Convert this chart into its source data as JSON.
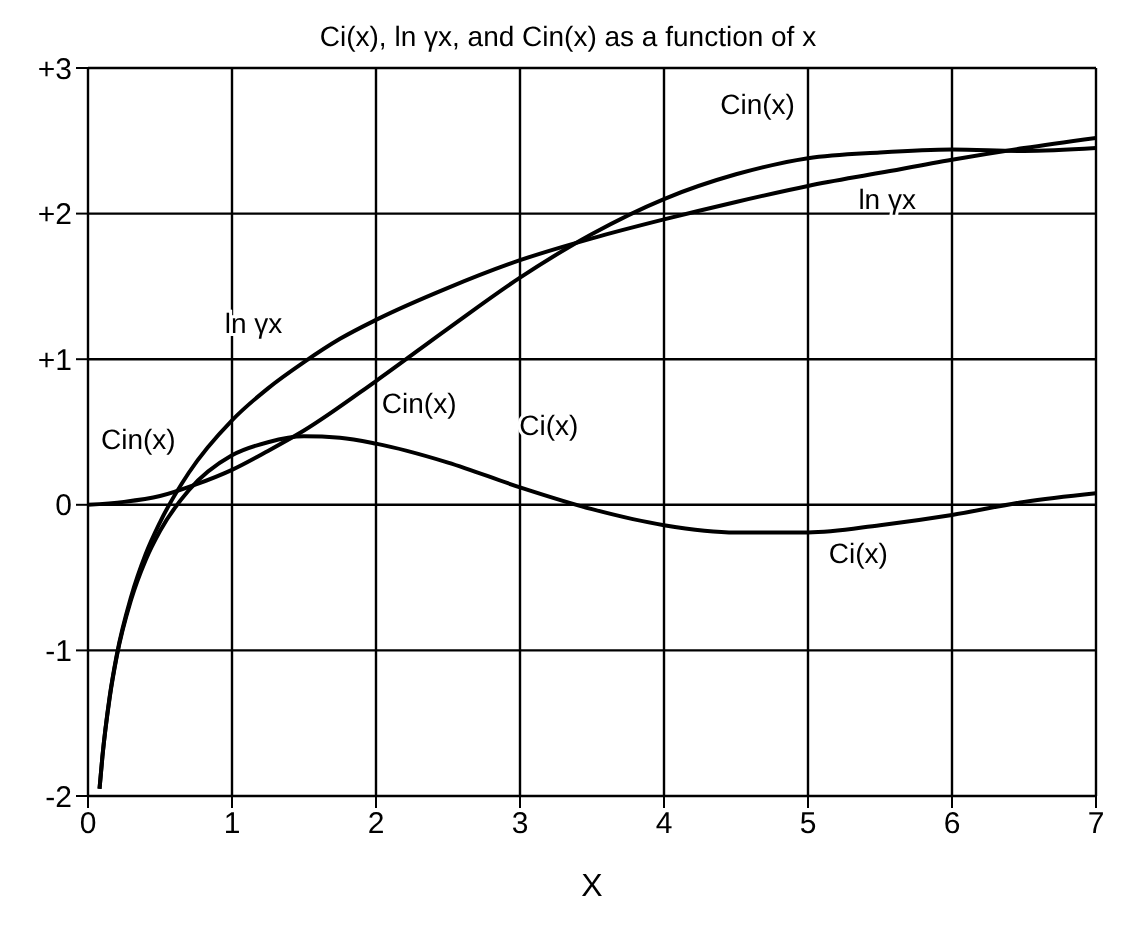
{
  "chart_data": {
    "type": "line",
    "title": "Ci(x), ln γx, and Cin(x) as a function of x",
    "xlabel": "X",
    "x": [
      0.08,
      0.1,
      0.15,
      0.2,
      0.3,
      0.4,
      0.5,
      0.7,
      1,
      1.25,
      1.5,
      1.75,
      2,
      2.5,
      3,
      3.5,
      4,
      4.5,
      5,
      5.5,
      6,
      6.5,
      7
    ],
    "series": [
      {
        "name": "Ci(x)",
        "color": "#000000",
        "values": [
          -1.95,
          -1.73,
          -1.33,
          -1.04,
          -0.65,
          -0.38,
          -0.18,
          0.1,
          0.34,
          0.43,
          0.47,
          0.46,
          0.42,
          0.29,
          0.12,
          -0.03,
          -0.14,
          -0.19,
          -0.19,
          -0.14,
          -0.07,
          0.02,
          0.08
        ]
      },
      {
        "name": "ln γx",
        "color": "#000000",
        "values": [
          -1.95,
          -1.73,
          -1.32,
          -1.03,
          -0.63,
          -0.34,
          -0.12,
          0.22,
          0.58,
          0.8,
          0.98,
          1.14,
          1.27,
          1.49,
          1.68,
          1.83,
          1.96,
          2.08,
          2.19,
          2.28,
          2.37,
          2.45,
          2.52
        ]
      },
      {
        "name": "Cin(x)",
        "color": "#000000",
        "x": [
          0,
          0.25,
          0.5,
          0.75,
          1,
          1.25,
          1.5,
          2,
          2.5,
          3,
          3.5,
          4,
          4.5,
          5,
          5.5,
          6,
          6.5,
          7
        ],
        "values": [
          0,
          0.02,
          0.06,
          0.14,
          0.24,
          0.37,
          0.51,
          0.85,
          1.21,
          1.56,
          1.86,
          2.1,
          2.27,
          2.38,
          2.42,
          2.44,
          2.43,
          2.45
        ]
      }
    ],
    "xlim": [
      0,
      7
    ],
    "xticks": [
      0,
      1,
      2,
      3,
      4,
      5,
      6,
      7
    ],
    "ylim": [
      -2,
      3
    ],
    "yticks": [
      -2,
      -1,
      0,
      {
        "value": 1,
        "label": "+1"
      },
      {
        "value": 2,
        "label": "+2"
      },
      {
        "value": 3,
        "label": "+3"
      }
    ],
    "grid": true,
    "marker": "none",
    "line_style": "solid"
  }
}
